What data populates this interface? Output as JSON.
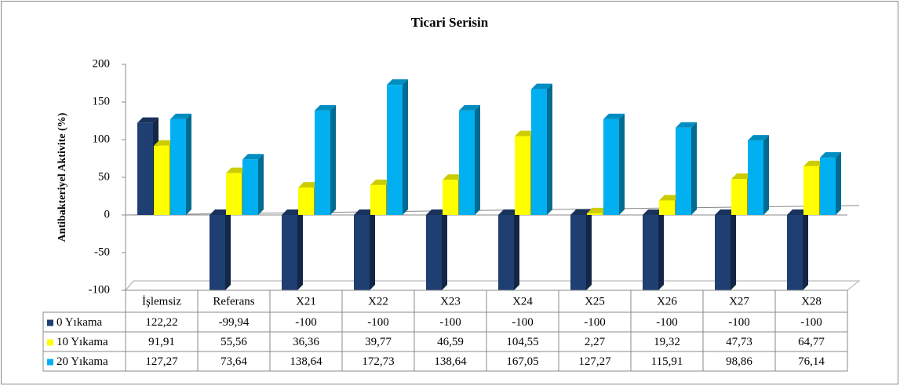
{
  "chart_data": {
    "type": "bar",
    "title": "Ticari Serisin",
    "y_label": "Antibakteriyel Aktivite (%)",
    "categories": [
      "İşlemsiz",
      "Referans",
      "X21",
      "X22",
      "X23",
      "X24",
      "X25",
      "X26",
      "X27",
      "X28"
    ],
    "series": [
      {
        "name": "0 Yıkama",
        "color": "#1f3f73",
        "values": [
          122.22,
          -99.94,
          -100,
          -100,
          -100,
          -100,
          -100,
          -100,
          -100,
          -100
        ],
        "value_labels": [
          "122,22",
          "-99,94",
          "-100",
          "-100",
          "-100",
          "-100",
          "-100",
          "-100",
          "-100",
          "-100"
        ]
      },
      {
        "name": "10 Yıkama",
        "color": "#ffff00",
        "values": [
          91.91,
          55.56,
          36.36,
          39.77,
          46.59,
          104.55,
          2.27,
          19.32,
          47.73,
          64.77
        ],
        "value_labels": [
          "91,91",
          "55,56",
          "36,36",
          "39,77",
          "46,59",
          "104,55",
          "2,27",
          "19,32",
          "47,73",
          "64,77"
        ]
      },
      {
        "name": "20 Yıkama",
        "color": "#00b0f0",
        "values": [
          127.27,
          73.64,
          138.64,
          172.73,
          138.64,
          167.05,
          127.27,
          115.91,
          98.86,
          76.14
        ],
        "value_labels": [
          "127,27",
          "73,64",
          "138,64",
          "172,73",
          "138,64",
          "167,05",
          "127,27",
          "115,91",
          "98,86",
          "76,14"
        ]
      }
    ],
    "ylim": [
      -100,
      200
    ],
    "yticks": [
      -100,
      -50,
      0,
      50,
      100,
      150,
      200
    ],
    "data_table": true
  }
}
